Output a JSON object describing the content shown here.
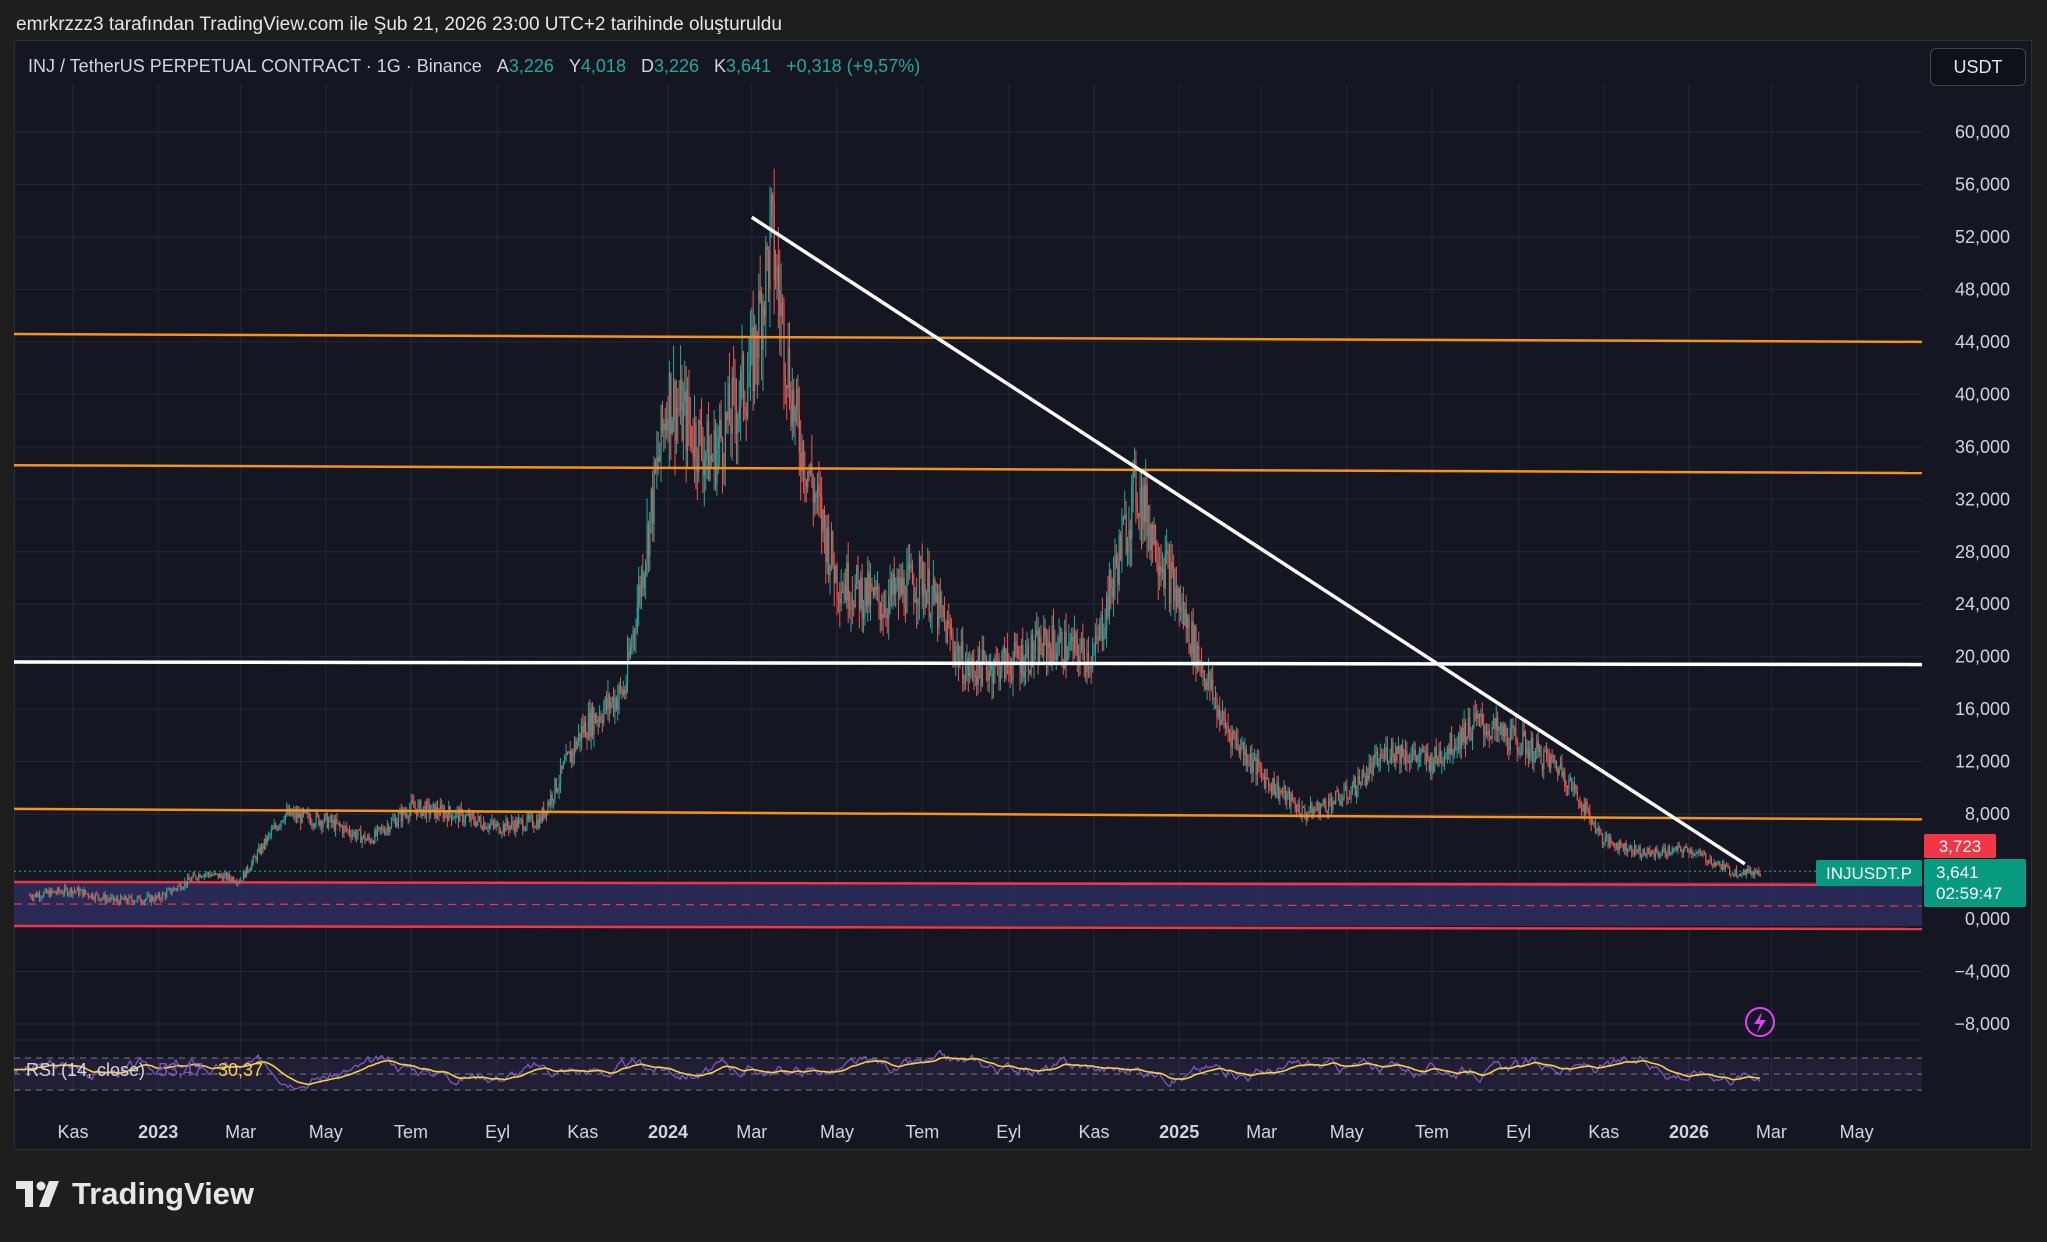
{
  "credit": "emrkrzzz3 tarafından TradingView.com ile Şub 21, 2026 23:00 UTC+2 tarihinde oluşturuldu",
  "header": {
    "symbol": "INJ / TetherUS PERPETUAL CONTRACT · 1G · Binance",
    "ohlc": [
      {
        "label": "A",
        "value": "3,226"
      },
      {
        "label": "Y",
        "value": "4,018"
      },
      {
        "label": "D",
        "value": "3,226"
      },
      {
        "label": "K",
        "value": "3,641"
      }
    ],
    "change": "+0,318 (+9,57%)",
    "currency_button": "USDT"
  },
  "price_axis": {
    "ticks": [
      "60,000",
      "56,000",
      "52,000",
      "48,000",
      "44,000",
      "40,000",
      "36,000",
      "32,000",
      "28,000",
      "24,000",
      "20,000",
      "16,000",
      "12,000",
      "8,000",
      "0,000",
      "−4,000",
      "−8,000"
    ]
  },
  "time_axis": {
    "ticks": [
      {
        "label": "Kas",
        "bold": false
      },
      {
        "label": "2023",
        "bold": true
      },
      {
        "label": "Mar",
        "bold": false
      },
      {
        "label": "May",
        "bold": false
      },
      {
        "label": "Tem",
        "bold": false
      },
      {
        "label": "Eyl",
        "bold": false
      },
      {
        "label": "Kas",
        "bold": false
      },
      {
        "label": "2024",
        "bold": true
      },
      {
        "label": "Mar",
        "bold": false
      },
      {
        "label": "May",
        "bold": false
      },
      {
        "label": "Tem",
        "bold": false
      },
      {
        "label": "Eyl",
        "bold": false
      },
      {
        "label": "Kas",
        "bold": false
      },
      {
        "label": "2025",
        "bold": true
      },
      {
        "label": "Mar",
        "bold": false
      },
      {
        "label": "May",
        "bold": false
      },
      {
        "label": "Tem",
        "bold": false
      },
      {
        "label": "Eyl",
        "bold": false
      },
      {
        "label": "Kas",
        "bold": false
      },
      {
        "label": "2026",
        "bold": true
      },
      {
        "label": "Mar",
        "bold": false
      },
      {
        "label": "May",
        "bold": false
      }
    ]
  },
  "price_labels": {
    "high_tag": "3,723",
    "symbol_tag": "INJUSDT.P",
    "last_price": "3,641",
    "countdown": "02:59:47"
  },
  "rsi": {
    "label": "RSI (14, close)",
    "value1": "53,47",
    "value2": "30,37"
  },
  "colors": {
    "up": "#26a69a",
    "down": "#ef5350",
    "support": "#f7931a",
    "trendline": "#ffffff",
    "zone": "#2b2d5e",
    "zone_border": "#f23645",
    "rsi_line": "#7e57c2",
    "rsi_ma": "#f5d142"
  },
  "chart_data": {
    "type": "candlestick",
    "symbol": "INJUSDT.P",
    "interval": "1G",
    "ylim": [
      -10,
      63
    ],
    "price_path": [
      [
        "2022-10",
        1.8
      ],
      [
        "2022-11",
        2.2
      ],
      [
        "2022-12",
        1.4
      ],
      [
        "2023-01",
        1.6
      ],
      [
        "2023-02",
        3.5
      ],
      [
        "2023-03",
        3.0
      ],
      [
        "2023-04",
        8.0
      ],
      [
        "2023-05",
        7.5
      ],
      [
        "2023-06",
        6.0
      ],
      [
        "2023-07",
        8.5
      ],
      [
        "2023-08",
        8.0
      ],
      [
        "2023-09",
        7.0
      ],
      [
        "2023-10",
        7.5
      ],
      [
        "2023-11",
        14.5
      ],
      [
        "2023-12",
        17.5
      ],
      [
        "2024-01",
        40.0
      ],
      [
        "2024-02",
        35.0
      ],
      [
        "2024-03",
        42.0
      ],
      [
        "2024-03-15",
        52.0
      ],
      [
        "2024-04",
        38.0
      ],
      [
        "2024-05",
        26.0
      ],
      [
        "2024-06",
        24.0
      ],
      [
        "2024-07",
        26.0
      ],
      [
        "2024-08",
        19.0
      ],
      [
        "2024-09",
        19.5
      ],
      [
        "2024-10",
        21.0
      ],
      [
        "2024-11",
        20.0
      ],
      [
        "2024-12",
        33.0
      ],
      [
        "2025-01",
        24.0
      ],
      [
        "2025-02",
        15.0
      ],
      [
        "2025-03",
        11.0
      ],
      [
        "2025-04",
        8.0
      ],
      [
        "2025-05",
        9.5
      ],
      [
        "2025-06",
        13.0
      ],
      [
        "2025-07",
        12.0
      ],
      [
        "2025-08",
        15.0
      ],
      [
        "2025-09",
        13.5
      ],
      [
        "2025-10",
        11.5
      ],
      [
        "2025-11",
        6.0
      ],
      [
        "2025-12",
        5.0
      ],
      [
        "2026-01",
        5.3
      ],
      [
        "2026-02",
        3.6
      ]
    ],
    "horizontal_levels": [
      {
        "kind": "resistance",
        "from": 44.6,
        "to": 44.0
      },
      {
        "kind": "resistance",
        "from": 34.6,
        "to": 34.0
      },
      {
        "kind": "key_level",
        "from": 19.6,
        "to": 19.4
      },
      {
        "kind": "support",
        "from": 8.4,
        "to": 7.6
      }
    ],
    "trendline": {
      "from": [
        "2024-03",
        53.5
      ],
      "to": [
        "2026-02-10",
        4.2
      ]
    },
    "demand_zone": {
      "top": 2.5,
      "mid": 1.0,
      "bottom": -0.5
    },
    "last_close": 3.641,
    "high_marker": 3.723
  }
}
